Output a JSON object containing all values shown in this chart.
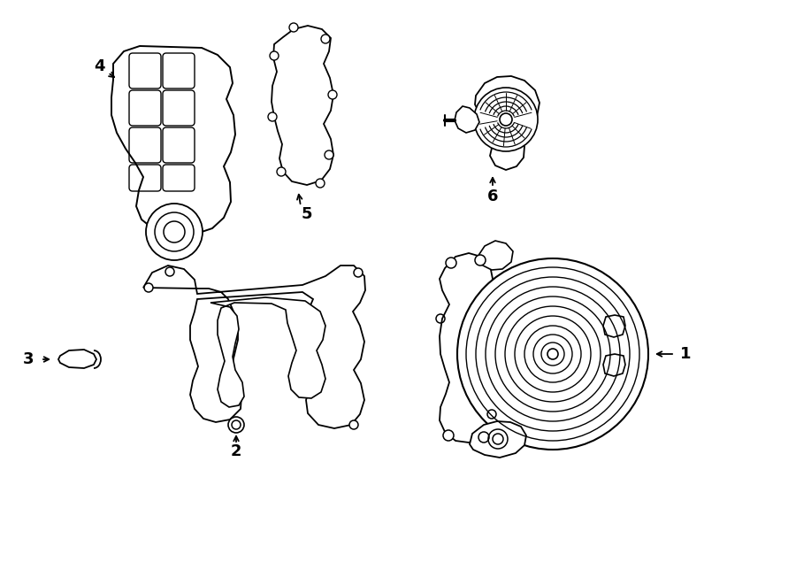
{
  "bg_color": "#ffffff",
  "line_color": "#000000",
  "lw": 1.3,
  "figsize": [
    9.0,
    6.61
  ],
  "dpi": 100,
  "label_fontsize": 13
}
